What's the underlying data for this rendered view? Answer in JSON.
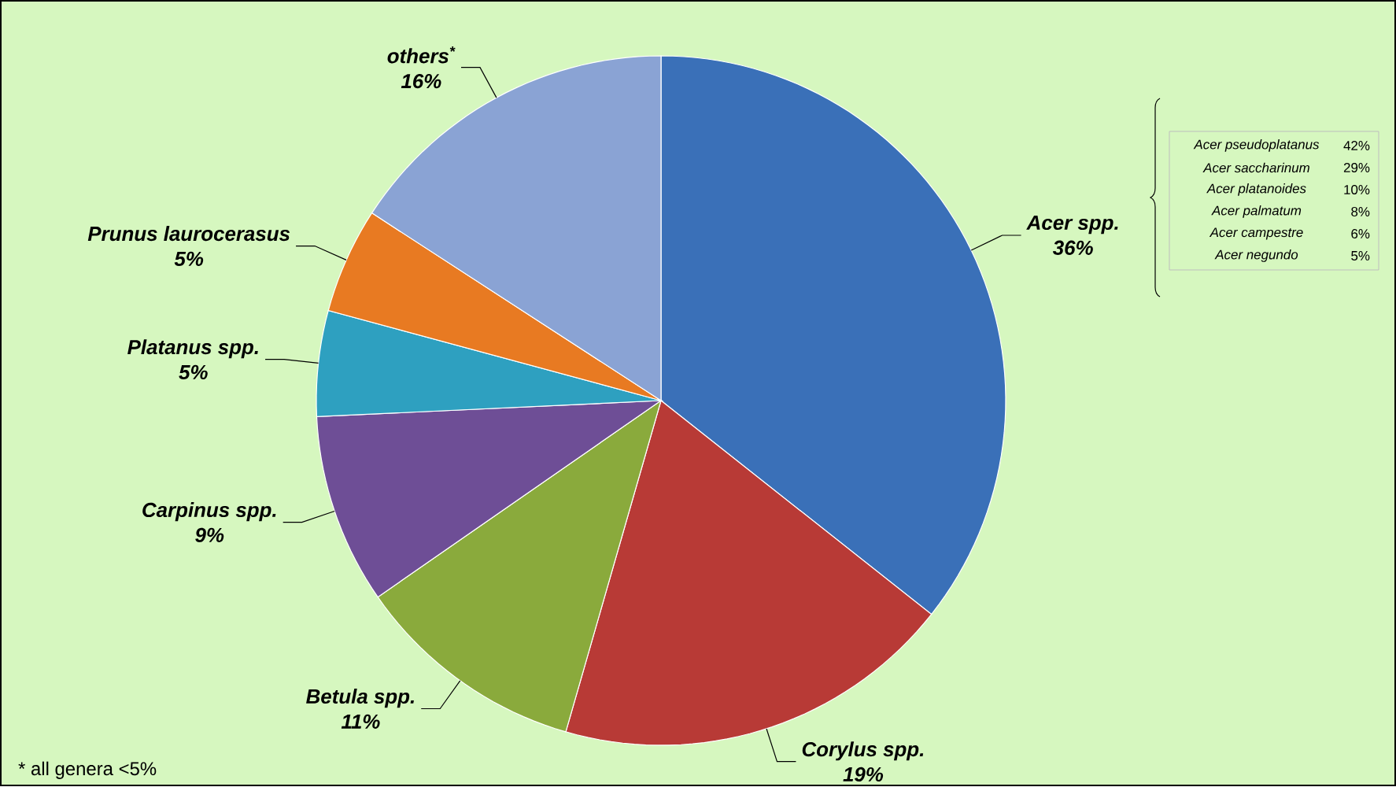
{
  "chart_data": {
    "type": "pie",
    "categories": [
      "Acer spp.",
      "Corylus spp.",
      "Betula spp.",
      "Carpinus spp.",
      "Platanus spp.",
      "Prunus laurocerasus",
      "others$^{*}$"
    ],
    "values": [
      36,
      19,
      11,
      9,
      5,
      5,
      16
    ],
    "value_labels": [
      "36%",
      "19%",
      "11%",
      "9%",
      "5%",
      "5%",
      "16%"
    ],
    "colors": [
      "#3a70b8",
      "#b83a36",
      "#8aaa3c",
      "#6e4e96",
      "#2ea0c0",
      "#e87a22",
      "#8aa3d4"
    ],
    "annotations": [
      "Acer pseudoplatanus",
      "42%",
      "Acer saccharinum",
      "29%",
      "Acer platanoides",
      "10%",
      "Acer palmatum",
      "8%",
      "Acer campestre",
      "6%",
      "Acer negundo",
      "5%",
      "* all genera <5%"
    ]
  }
}
